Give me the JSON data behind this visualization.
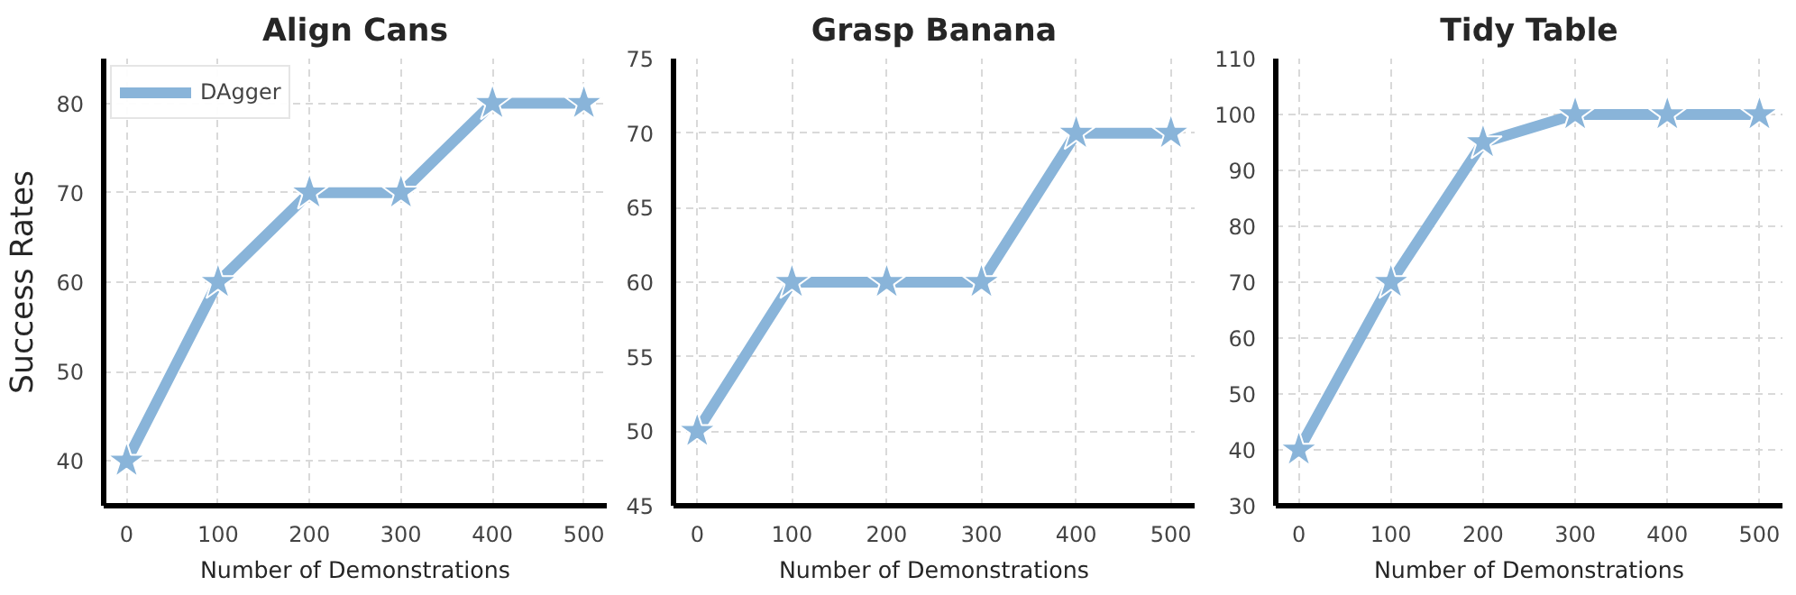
{
  "chart_data": [
    {
      "type": "line",
      "title": "Align Cans",
      "xlabel": "Number of Demonstrations",
      "ylabel": "Success Rates",
      "x": [
        0,
        100,
        200,
        300,
        400,
        500
      ],
      "series": [
        {
          "name": "DAgger",
          "color": "#89b4d9",
          "values": [
            40,
            60,
            70,
            70,
            80,
            80
          ]
        }
      ],
      "xlim": [
        -25,
        525
      ],
      "xticks": [
        0,
        100,
        200,
        300,
        400,
        500
      ],
      "ylim": [
        35,
        85
      ],
      "yticks": [
        40,
        50,
        60,
        70,
        80
      ],
      "grid": true,
      "legend": "top left",
      "marker": "star",
      "line_style": "solid"
    },
    {
      "type": "line",
      "title": "Grasp Banana",
      "xlabel": "Number of Demonstrations",
      "x": [
        0,
        100,
        200,
        300,
        400,
        500
      ],
      "series": [
        {
          "color": "#89b4d9",
          "values": [
            50,
            60,
            60,
            60,
            70,
            70
          ]
        }
      ],
      "xlim": [
        -25,
        525
      ],
      "xticks": [
        0,
        100,
        200,
        300,
        400,
        500
      ],
      "ylim": [
        45,
        75
      ],
      "yticks": [
        45,
        50,
        55,
        60,
        65,
        70,
        75
      ],
      "grid": true,
      "marker": "star",
      "line_style": "solid"
    },
    {
      "type": "line",
      "title": "Tidy Table",
      "xlabel": "Number of Demonstrations",
      "x": [
        0,
        100,
        200,
        300,
        400,
        500
      ],
      "series": [
        {
          "color": "#89b4d9",
          "values": [
            40,
            70,
            95,
            100,
            100,
            100
          ]
        }
      ],
      "xlim": [
        -25,
        525
      ],
      "xticks": [
        0,
        100,
        200,
        300,
        400,
        500
      ],
      "ylim": [
        30,
        110
      ],
      "yticks": [
        30,
        40,
        50,
        60,
        70,
        80,
        90,
        100,
        110
      ],
      "grid": true,
      "marker": "star",
      "line_style": "solid"
    }
  ]
}
